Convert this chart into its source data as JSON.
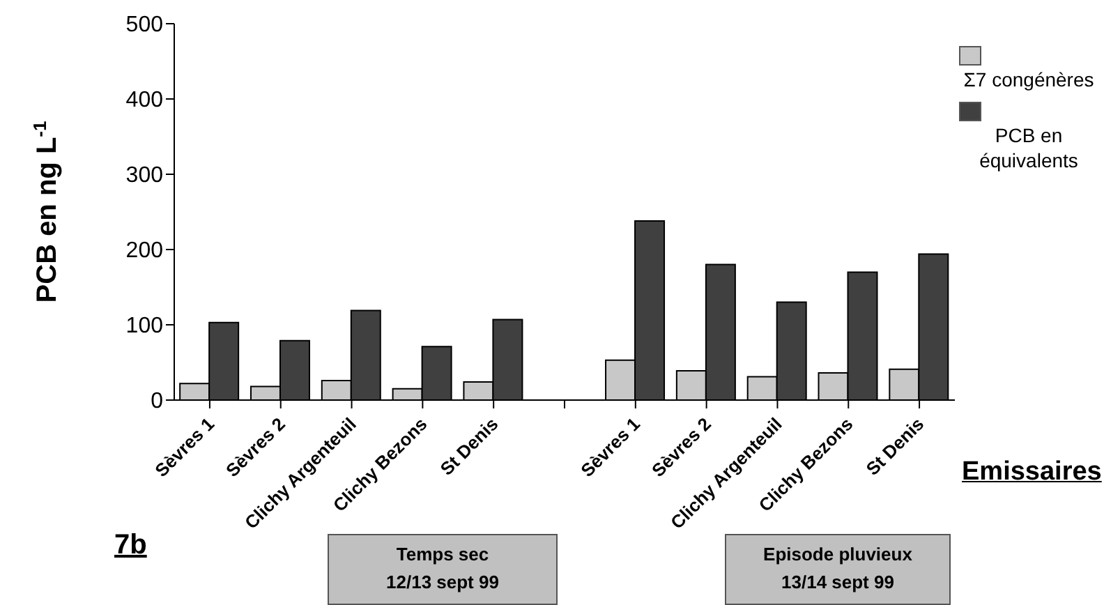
{
  "chart_data": {
    "type": "bar",
    "ylabel": "PCB en ng L$^{-1}$",
    "xlabel": "Emissaires",
    "categories": [
      "Sèvres 1",
      "Sèvres 2",
      "Clichy Argenteuil",
      "Clichy Bezons",
      "St Denis",
      null,
      "Sèvres 1",
      "Sèvres 2",
      "Clichy Argenteuil",
      "Clichy Bezons",
      "St Denis"
    ],
    "series": [
      {
        "name": "Σ7 congénères",
        "color": "#c8c8c8",
        "values": [
          22,
          18,
          26,
          15,
          24,
          null,
          53,
          39,
          31,
          36,
          41
        ]
      },
      {
        "name": "PCB en équivalents",
        "color": "#404040",
        "values": [
          103,
          79,
          119,
          71,
          107,
          null,
          238,
          180,
          130,
          170,
          194
        ]
      }
    ],
    "ylim": [
      0,
      500
    ],
    "yticks": [
      0,
      100,
      200,
      300,
      400,
      500
    ],
    "grid": false,
    "legend": "right",
    "annotations": [
      "Temps sec\n12/13 sept 99",
      "Episode pluvieux\n13/14 sept 99",
      "7b"
    ]
  }
}
